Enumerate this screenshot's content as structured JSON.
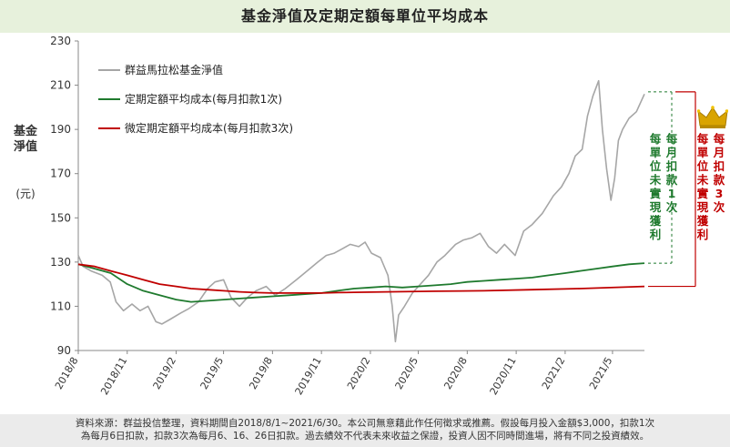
{
  "colors": {
    "nav": "#a6a6a6",
    "green": "#1f7a2e",
    "red": "#c00000",
    "axis": "#888888",
    "gold": "#d9a400"
  },
  "chart_data": {
    "type": "line",
    "title": "基金淨值及定期定額每單位平均成本",
    "ylabel": "基金淨值",
    "yunit": "(元)",
    "ylim": [
      90,
      230
    ],
    "yticks": [
      90,
      110,
      130,
      150,
      170,
      190,
      210,
      230
    ],
    "xlim": [
      "2018-08-01",
      "2021-06-30"
    ],
    "xticks": [
      {
        "label": "2018/8",
        "date": "2018-08-01"
      },
      {
        "label": "2018/11",
        "date": "2018-11-01"
      },
      {
        "label": "2019/2",
        "date": "2019-02-01"
      },
      {
        "label": "2019/5",
        "date": "2019-05-01"
      },
      {
        "label": "2019/8",
        "date": "2019-08-01"
      },
      {
        "label": "2019/11",
        "date": "2019-11-01"
      },
      {
        "label": "2020/2",
        "date": "2020-02-01"
      },
      {
        "label": "2020/5",
        "date": "2020-05-01"
      },
      {
        "label": "2020/8",
        "date": "2020-08-01"
      },
      {
        "label": "2020/11",
        "date": "2020-11-01"
      },
      {
        "label": "2021/2",
        "date": "2021-02-01"
      },
      {
        "label": "2021/5",
        "date": "2021-05-01"
      }
    ],
    "legend_position": "top-left",
    "series": [
      {
        "name": "群益馬拉松基金淨值",
        "color": "#a6a6a6",
        "points": [
          [
            "2018-08-01",
            133
          ],
          [
            "2018-08-10",
            128
          ],
          [
            "2018-08-25",
            126
          ],
          [
            "2018-09-15",
            124
          ],
          [
            "2018-09-30",
            121
          ],
          [
            "2018-10-11",
            112
          ],
          [
            "2018-10-25",
            108
          ],
          [
            "2018-11-10",
            111
          ],
          [
            "2018-11-25",
            108
          ],
          [
            "2018-12-10",
            110
          ],
          [
            "2018-12-25",
            103
          ],
          [
            "2019-01-05",
            102
          ],
          [
            "2019-01-20",
            104
          ],
          [
            "2019-02-10",
            107
          ],
          [
            "2019-02-25",
            109
          ],
          [
            "2019-03-15",
            112
          ],
          [
            "2019-04-01",
            118
          ],
          [
            "2019-04-15",
            121
          ],
          [
            "2019-05-01",
            122
          ],
          [
            "2019-05-15",
            114
          ],
          [
            "2019-05-31",
            110
          ],
          [
            "2019-06-15",
            114
          ],
          [
            "2019-07-01",
            117
          ],
          [
            "2019-07-20",
            119
          ],
          [
            "2019-08-06",
            115
          ],
          [
            "2019-08-25",
            118
          ],
          [
            "2019-09-15",
            122
          ],
          [
            "2019-10-05",
            126
          ],
          [
            "2019-10-25",
            130
          ],
          [
            "2019-11-10",
            133
          ],
          [
            "2019-11-25",
            134
          ],
          [
            "2019-12-10",
            136
          ],
          [
            "2019-12-25",
            138
          ],
          [
            "2020-01-10",
            137
          ],
          [
            "2020-01-22",
            139
          ],
          [
            "2020-02-03",
            134
          ],
          [
            "2020-02-20",
            132
          ],
          [
            "2020-03-05",
            124
          ],
          [
            "2020-03-13",
            110
          ],
          [
            "2020-03-19",
            94
          ],
          [
            "2020-03-25",
            106
          ],
          [
            "2020-04-05",
            110
          ],
          [
            "2020-04-20",
            116
          ],
          [
            "2020-05-05",
            120
          ],
          [
            "2020-05-20",
            124
          ],
          [
            "2020-06-05",
            130
          ],
          [
            "2020-06-20",
            133
          ],
          [
            "2020-07-10",
            138
          ],
          [
            "2020-07-25",
            140
          ],
          [
            "2020-08-10",
            141
          ],
          [
            "2020-08-25",
            143
          ],
          [
            "2020-09-10",
            137
          ],
          [
            "2020-09-25",
            134
          ],
          [
            "2020-10-10",
            138
          ],
          [
            "2020-10-30",
            133
          ],
          [
            "2020-11-15",
            144
          ],
          [
            "2020-12-01",
            147
          ],
          [
            "2020-12-20",
            152
          ],
          [
            "2021-01-10",
            160
          ],
          [
            "2021-01-25",
            164
          ],
          [
            "2021-02-08",
            170
          ],
          [
            "2021-02-20",
            178
          ],
          [
            "2021-03-05",
            181
          ],
          [
            "2021-03-15",
            196
          ],
          [
            "2021-03-25",
            205
          ],
          [
            "2021-04-05",
            212
          ],
          [
            "2021-04-12",
            190
          ],
          [
            "2021-04-20",
            172
          ],
          [
            "2021-04-28",
            158
          ],
          [
            "2021-05-05",
            168
          ],
          [
            "2021-05-12",
            185
          ],
          [
            "2021-05-20",
            190
          ],
          [
            "2021-06-01",
            195
          ],
          [
            "2021-06-15",
            198
          ],
          [
            "2021-06-30",
            206
          ]
        ]
      },
      {
        "name": "定期定額平均成本(每月扣款1次)",
        "color": "#1f7a2e",
        "points": [
          [
            "2018-08-01",
            129
          ],
          [
            "2018-09-01",
            127
          ],
          [
            "2018-10-01",
            125
          ],
          [
            "2018-11-01",
            120
          ],
          [
            "2018-12-01",
            117
          ],
          [
            "2019-01-01",
            115
          ],
          [
            "2019-02-01",
            113
          ],
          [
            "2019-03-01",
            112
          ],
          [
            "2019-04-01",
            112.5
          ],
          [
            "2019-05-01",
            113
          ],
          [
            "2019-06-01",
            113.5
          ],
          [
            "2019-07-01",
            114
          ],
          [
            "2019-08-01",
            114.5
          ],
          [
            "2019-09-01",
            115
          ],
          [
            "2019-10-01",
            115.5
          ],
          [
            "2019-11-01",
            116
          ],
          [
            "2019-12-01",
            117
          ],
          [
            "2020-01-01",
            118
          ],
          [
            "2020-02-01",
            118.5
          ],
          [
            "2020-03-01",
            119
          ],
          [
            "2020-04-01",
            118.5
          ],
          [
            "2020-05-01",
            119
          ],
          [
            "2020-06-01",
            119.5
          ],
          [
            "2020-07-01",
            120
          ],
          [
            "2020-08-01",
            121
          ],
          [
            "2020-09-01",
            121.5
          ],
          [
            "2020-10-01",
            122
          ],
          [
            "2020-11-01",
            122.5
          ],
          [
            "2020-12-01",
            123
          ],
          [
            "2021-01-01",
            124
          ],
          [
            "2021-02-01",
            125
          ],
          [
            "2021-03-01",
            126
          ],
          [
            "2021-04-01",
            127
          ],
          [
            "2021-05-01",
            128
          ],
          [
            "2021-06-01",
            129
          ],
          [
            "2021-06-30",
            129.5
          ]
        ]
      },
      {
        "name": "微定期定額平均成本(每月扣款3次)",
        "color": "#c00000",
        "points": [
          [
            "2018-08-01",
            129
          ],
          [
            "2018-09-01",
            128
          ],
          [
            "2018-10-01",
            126
          ],
          [
            "2018-11-01",
            124
          ],
          [
            "2018-12-01",
            122
          ],
          [
            "2019-01-01",
            120
          ],
          [
            "2019-02-01",
            119
          ],
          [
            "2019-03-01",
            118
          ],
          [
            "2019-04-01",
            117.5
          ],
          [
            "2019-05-01",
            117
          ],
          [
            "2019-06-01",
            116.5
          ],
          [
            "2019-07-01",
            116.2
          ],
          [
            "2019-08-01",
            116
          ],
          [
            "2019-09-01",
            116
          ],
          [
            "2019-10-01",
            116
          ],
          [
            "2019-11-01",
            116
          ],
          [
            "2019-12-01",
            116.2
          ],
          [
            "2020-01-01",
            116.3
          ],
          [
            "2020-03-01",
            116.5
          ],
          [
            "2020-06-01",
            116.8
          ],
          [
            "2020-09-01",
            117
          ],
          [
            "2020-12-01",
            117.5
          ],
          [
            "2021-03-01",
            118
          ],
          [
            "2021-06-30",
            119
          ]
        ]
      }
    ],
    "annotations": {
      "green": "每月扣款1次 每單位未實現獲利",
      "red": "每月扣款3次 每單位未實現獲利"
    }
  },
  "notes": {
    "line1": "資料來源：群益投信整理，資料期間自2018/8/1~2021/6/30。本公司無意藉此作任何徵求或推薦。假設每月投入金額$3,000，扣款1次",
    "line2": "為每月6日扣款，扣款3次為每月6、16、26日扣款。過去績效不代表未來收益之保證，投資人因不同時間進場，將有不同之投資績效。"
  }
}
